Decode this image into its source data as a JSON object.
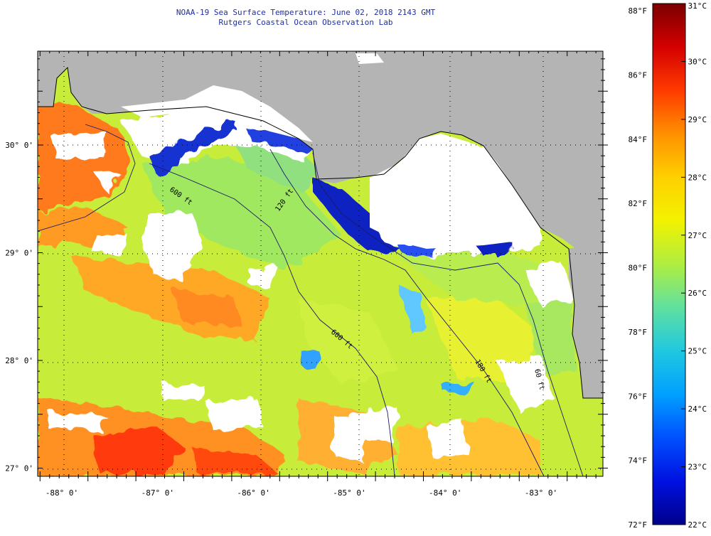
{
  "title_line1": "NOAA-19 Sea Surface Temperature:  June 02, 2018 2143 GMT",
  "title_line2": "Rutgers Coastal Ocean Observation Lab",
  "lat_ticks": [
    {
      "value": 30,
      "label": "30° 0'"
    },
    {
      "value": 29,
      "label": "29° 0'"
    },
    {
      "value": 28,
      "label": "28° 0'"
    },
    {
      "value": 27,
      "label": "27° 0'"
    }
  ],
  "lon_ticks": [
    {
      "value": -88,
      "label": "-88° 0'"
    },
    {
      "value": -87,
      "label": "-87° 0'"
    },
    {
      "value": -86,
      "label": "-86° 0'"
    },
    {
      "value": -85,
      "label": "-85° 0'"
    },
    {
      "value": -84,
      "label": "-84° 0'"
    },
    {
      "value": -83,
      "label": "-83° 0'"
    }
  ],
  "isobath_labels": [
    {
      "text": "600 ft"
    },
    {
      "text": "120 ft"
    },
    {
      "text": "600 ft"
    },
    {
      "text": "180 ft"
    },
    {
      "text": "60 ft"
    }
  ],
  "colorbar": {
    "fahrenheit_labels": [
      "88°F",
      "86°F",
      "84°F",
      "82°F",
      "80°F",
      "78°F",
      "76°F",
      "74°F",
      "72°F"
    ],
    "celsius_labels": [
      "31°C",
      "30°C",
      "29°C",
      "28°C",
      "27°C",
      "26°C",
      "25°C",
      "24°C",
      "23°C",
      "22°C"
    ],
    "colors": [
      "#7a0000",
      "#d40000",
      "#ff3a00",
      "#ff9000",
      "#ffd000",
      "#f2f200",
      "#b0ee40",
      "#60e0a0",
      "#20c8e0",
      "#00a0ff",
      "#0050ff",
      "#0010e0",
      "#00008a"
    ]
  },
  "colors": {
    "land": "#b4b4b4",
    "cloud": "#ffffff",
    "title": "#1f2fa0"
  }
}
